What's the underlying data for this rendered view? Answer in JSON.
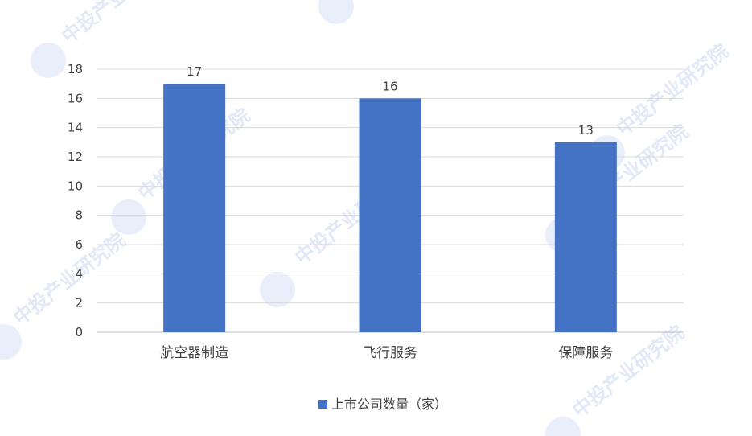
{
  "chart_data": {
    "type": "bar",
    "categories": [
      "航空器制造",
      "飞行服务",
      "保障服务"
    ],
    "series": [
      {
        "name": "上市公司数量（家）",
        "values": [
          17,
          16,
          13
        ]
      }
    ],
    "ylim": [
      0,
      18
    ],
    "yticks": [
      0,
      2,
      4,
      6,
      8,
      10,
      12,
      14,
      16,
      18
    ],
    "grid": true,
    "legend_position": "bottom",
    "bar_color": "#4472C4",
    "show_data_labels": true
  },
  "watermark": {
    "text": "中投产业研究院"
  }
}
